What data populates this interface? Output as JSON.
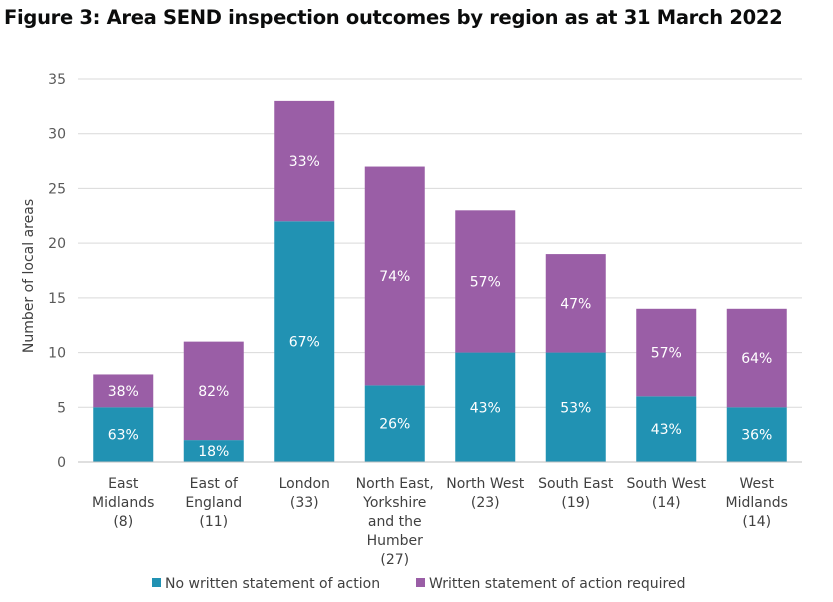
{
  "title": "Figure 3: Area SEND inspection outcomes by region as at 31 March 2022",
  "colors": {
    "no_written": "#2192b3",
    "written": "#9a5ea6",
    "grid": "#d9d9d9",
    "axis": "#bfbfbf"
  },
  "chart_data": {
    "type": "bar",
    "stacked": true,
    "title": "Figure 3: Area SEND inspection outcomes by region as at 31 March 2022",
    "xlabel": "",
    "ylabel": "Number of local areas",
    "ylim": [
      0,
      35
    ],
    "yticks": [
      0,
      5,
      10,
      15,
      20,
      25,
      30,
      35
    ],
    "grid": true,
    "legend_position": "bottom",
    "categories": [
      [
        "East",
        "Midlands",
        "(8)"
      ],
      [
        "East of",
        "England",
        "(11)"
      ],
      [
        "London",
        "(33)"
      ],
      [
        "North East,",
        "Yorkshire",
        "and the",
        "Humber",
        "(27)"
      ],
      [
        "North West",
        "(23)"
      ],
      [
        "South East",
        "(19)"
      ],
      [
        "South West",
        "(14)"
      ],
      [
        "West",
        "Midlands",
        "(14)"
      ]
    ],
    "series": [
      {
        "name": "No written statement of action",
        "values": [
          5,
          2,
          22,
          7,
          10,
          10,
          6,
          5
        ],
        "labels": [
          "63%",
          "18%",
          "67%",
          "26%",
          "43%",
          "53%",
          "43%",
          "36%"
        ]
      },
      {
        "name": "Written statement of action required",
        "values": [
          3,
          9,
          11,
          20,
          13,
          9,
          8,
          9
        ],
        "labels": [
          "38%",
          "82%",
          "33%",
          "74%",
          "57%",
          "47%",
          "57%",
          "64%"
        ]
      }
    ]
  }
}
